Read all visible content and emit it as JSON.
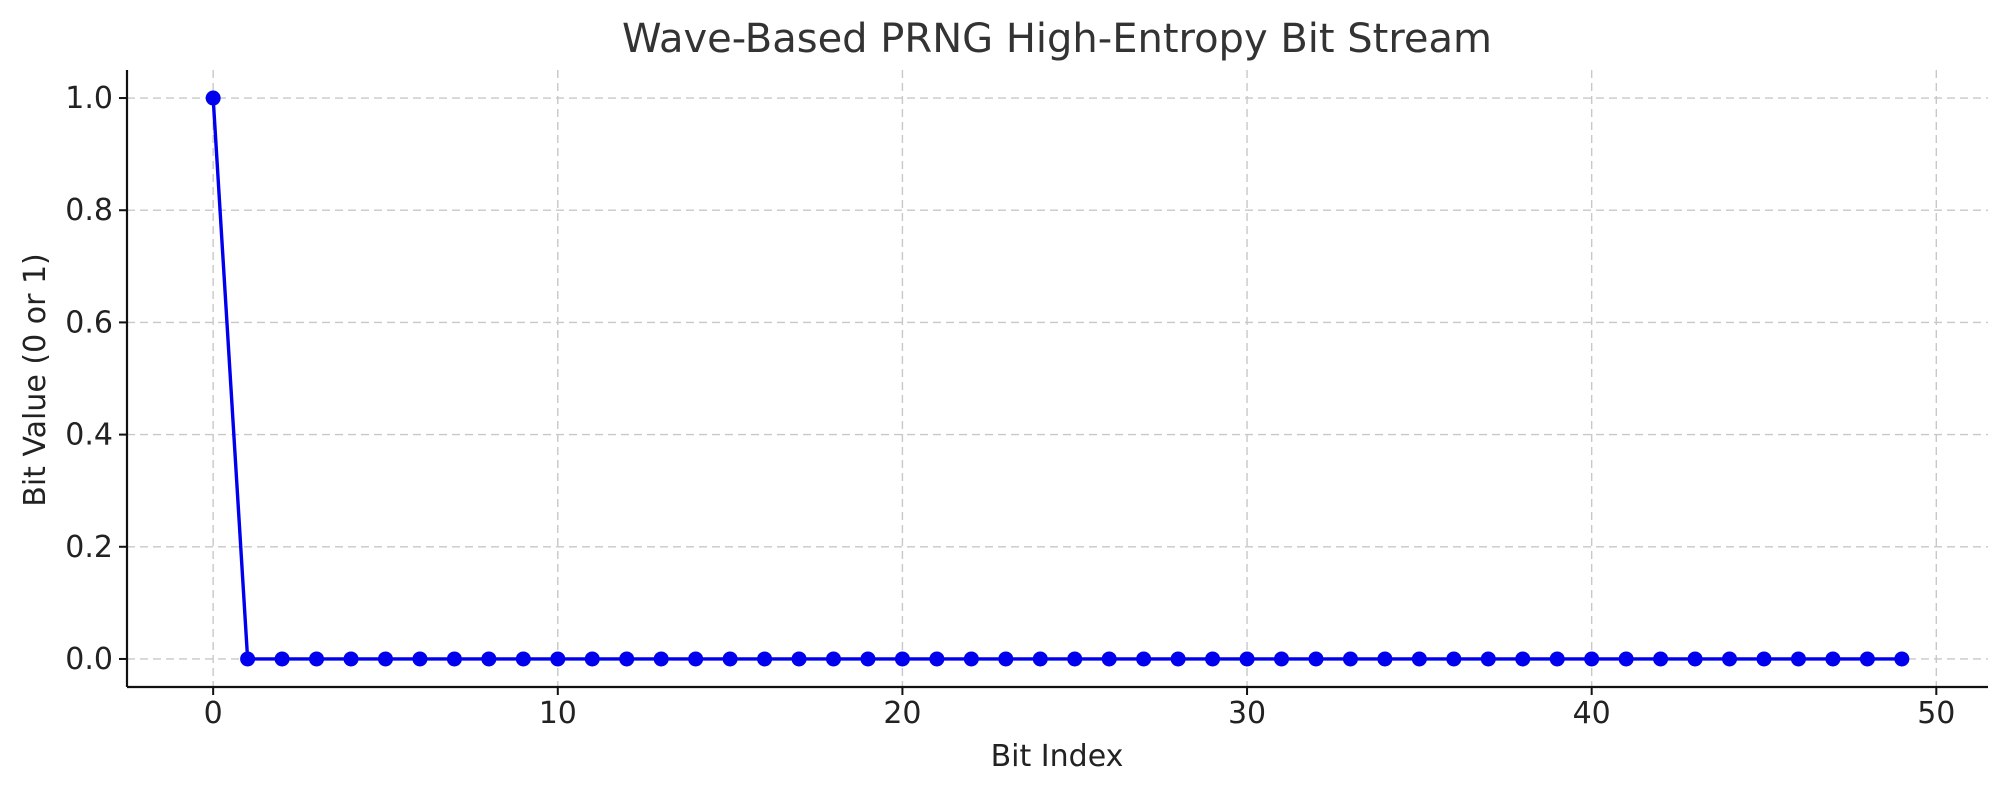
{
  "chart_data": {
    "type": "line",
    "title": "Wave-Based PRNG High-Entropy Bit Stream",
    "xlabel": "Bit Index",
    "ylabel": "Bit Value (0 or 1)",
    "xlim": [
      -2.5,
      51.5
    ],
    "ylim": [
      -0.05,
      1.05
    ],
    "xticks": [
      0,
      10,
      20,
      30,
      40,
      50
    ],
    "xtick_labels": [
      "0",
      "10",
      "20",
      "30",
      "40",
      "50"
    ],
    "yticks": [
      0.0,
      0.2,
      0.4,
      0.6,
      0.8,
      1.0
    ],
    "ytick_labels": [
      "0.0",
      "0.2",
      "0.4",
      "0.6",
      "0.8",
      "1.0"
    ],
    "grid": true,
    "series": [
      {
        "color": "#0000ee",
        "marker": "circle",
        "x": [
          0,
          1,
          2,
          3,
          4,
          5,
          6,
          7,
          8,
          9,
          10,
          11,
          12,
          13,
          14,
          15,
          16,
          17,
          18,
          19,
          20,
          21,
          22,
          23,
          24,
          25,
          26,
          27,
          28,
          29,
          30,
          31,
          32,
          33,
          34,
          35,
          36,
          37,
          38,
          39,
          40,
          41,
          42,
          43,
          44,
          45,
          46,
          47,
          48,
          49
        ],
        "values": [
          1,
          0,
          0,
          0,
          0,
          0,
          0,
          0,
          0,
          0,
          0,
          0,
          0,
          0,
          0,
          0,
          0,
          0,
          0,
          0,
          0,
          0,
          0,
          0,
          0,
          0,
          0,
          0,
          0,
          0,
          0,
          0,
          0,
          0,
          0,
          0,
          0,
          0,
          0,
          0,
          0,
          0,
          0,
          0,
          0,
          0,
          0,
          0,
          0,
          0
        ]
      }
    ]
  }
}
